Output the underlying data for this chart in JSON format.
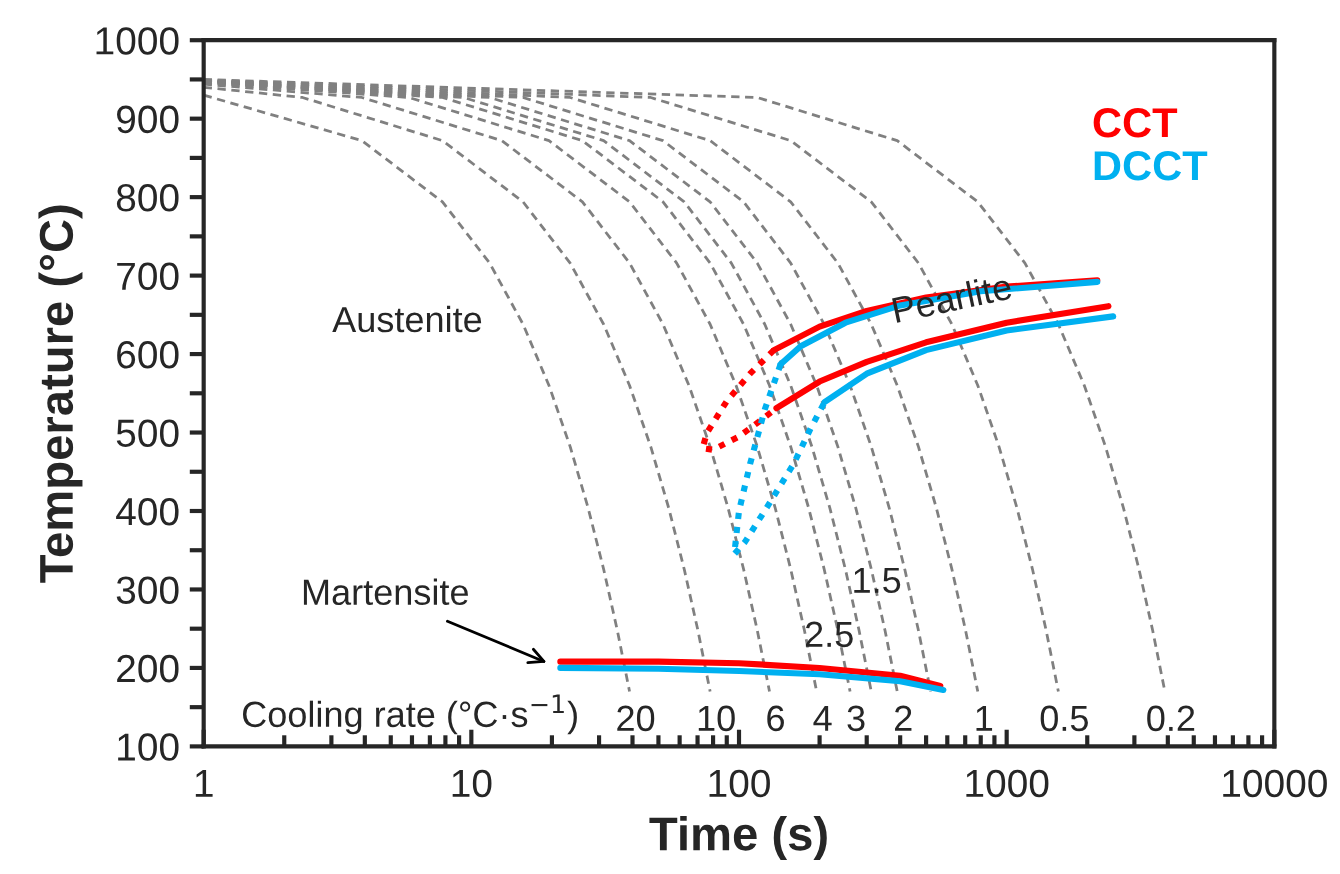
{
  "chart_data": {
    "type": "line",
    "xlabel": "Time (s)",
    "ylabel": "Temperature (°C)",
    "log": "x",
    "xlim": [
      1,
      10000
    ],
    "xticks": [
      1,
      10,
      100,
      1000,
      10000
    ],
    "ylim": [
      100,
      1000
    ],
    "yticks": [
      100,
      200,
      300,
      400,
      500,
      600,
      700,
      800,
      900,
      1000
    ],
    "grid": false,
    "legend": "top right",
    "marker": "none",
    "series": [
      {
        "color": "#808080",
        "line_style": "dashed",
        "x": [
          1,
          3.9,
          7.8,
          11.7,
          15.6,
          19.5,
          23.4,
          27.3,
          31.2,
          35.1,
          39
        ],
        "values": [
          930,
          872,
          794,
          716,
          638,
          560,
          482,
          404,
          326,
          248,
          170
        ]
      },
      {
        "color": "#808080",
        "line_style": "dashed",
        "x": [
          1,
          2.34,
          7.8,
          15.6,
          23.4,
          31.2,
          39,
          46.8,
          54.6,
          62.4,
          70.2,
          78
        ],
        "values": [
          940,
          927,
          872,
          794,
          716,
          638,
          560,
          482,
          404,
          326,
          248,
          170
        ]
      },
      {
        "color": "#808080",
        "line_style": "dashed",
        "x": [
          1,
          3.9,
          13,
          26,
          39,
          52,
          65,
          78,
          91,
          104,
          117,
          130
        ],
        "values": [
          944,
          927,
          872,
          794,
          716,
          638,
          560,
          482,
          404,
          326,
          248,
          170
        ]
      },
      {
        "color": "#808080",
        "line_style": "dashed",
        "x": [
          1,
          5.85,
          19.5,
          39,
          58.5,
          78,
          97.5,
          117,
          136.5,
          156,
          175.5,
          195
        ],
        "values": [
          946,
          927,
          872,
          794,
          716,
          638,
          560,
          482,
          404,
          326,
          248,
          170
        ]
      },
      {
        "color": "#808080",
        "line_style": "dashed",
        "x": [
          1,
          7.8,
          26,
          52,
          78,
          104,
          130,
          156,
          182,
          208,
          234,
          260
        ],
        "values": [
          947,
          927,
          872,
          794,
          716,
          638,
          560,
          482,
          404,
          326,
          248,
          170
        ]
      },
      {
        "color": "#808080",
        "line_style": "dashed",
        "x": [
          1,
          9.36,
          31.2,
          62.4,
          93.6,
          124.8,
          156,
          187.2,
          218.4,
          249.6,
          280.8,
          312
        ],
        "values": [
          947,
          927,
          872,
          794,
          716,
          638,
          560,
          482,
          404,
          326,
          248,
          170
        ]
      },
      {
        "color": "#808080",
        "line_style": "dashed",
        "x": [
          1,
          11.7,
          39,
          78,
          117,
          156,
          195,
          234,
          273,
          312,
          351,
          390
        ],
        "values": [
          948,
          927,
          872,
          794,
          716,
          638,
          560,
          482,
          404,
          326,
          248,
          170
        ]
      },
      {
        "color": "#808080",
        "line_style": "dashed",
        "x": [
          1,
          15.6,
          52,
          104,
          156,
          208,
          260,
          312,
          364,
          416,
          468,
          520
        ],
        "values": [
          948,
          927,
          872,
          794,
          716,
          638,
          560,
          482,
          404,
          326,
          248,
          170
        ]
      },
      {
        "color": "#808080",
        "line_style": "dashed",
        "x": [
          1,
          23.4,
          78,
          156,
          234,
          312,
          390,
          468,
          546,
          624,
          702,
          780
        ],
        "values": [
          949,
          927,
          872,
          794,
          716,
          638,
          560,
          482,
          404,
          326,
          248,
          170
        ]
      },
      {
        "color": "#808080",
        "line_style": "dashed",
        "x": [
          1,
          46.8,
          156,
          312,
          468,
          624,
          780,
          936,
          1092,
          1248,
          1404,
          1560
        ],
        "values": [
          949,
          927,
          872,
          794,
          716,
          638,
          560,
          482,
          404,
          326,
          248,
          170
        ]
      },
      {
        "color": "#808080",
        "line_style": "dashed",
        "x": [
          1,
          117,
          390,
          780,
          1170,
          1560,
          1950,
          2340,
          2730,
          3120,
          3510,
          3900
        ],
        "values": [
          950,
          927,
          872,
          794,
          716,
          638,
          560,
          482,
          404,
          326,
          248,
          170
        ]
      },
      {
        "name": "CCT",
        "color": "#ff0000",
        "line_style": "solid",
        "x": [
          135,
          200,
          300,
          500,
          1000,
          2180
        ],
        "values": [
          605,
          635,
          655,
          672,
          686,
          694
        ]
      },
      {
        "color": "#ff0000",
        "line_style": "solid",
        "x": [
          138,
          200,
          300,
          500,
          1000,
          2400
        ],
        "values": [
          531,
          565,
          590,
          615,
          640,
          661
        ]
      },
      {
        "color": "#ff0000",
        "line_style": "dotted",
        "x": [
          135,
          110,
          90,
          76,
          73,
          80,
          100,
          120,
          138
        ],
        "values": [
          605,
          575,
          540,
          500,
          480,
          478,
          495,
          515,
          531
        ]
      },
      {
        "color": "#ff0000",
        "line_style": "solid",
        "x": [
          21.5,
          50,
          100,
          200,
          400,
          565
        ],
        "values": [
          208,
          208,
          206,
          200,
          190,
          177
        ]
      },
      {
        "name": "DCCT",
        "color": "#00b0f0",
        "line_style": "solid",
        "x": [
          143,
          170,
          250,
          400,
          800,
          2180
        ],
        "values": [
          587,
          610,
          640,
          662,
          680,
          692
        ]
      },
      {
        "color": "#00b0f0",
        "line_style": "solid",
        "x": [
          209,
          300,
          500,
          1000,
          2500
        ],
        "values": [
          539,
          575,
          605,
          630,
          648
        ]
      },
      {
        "color": "#00b0f0",
        "line_style": "dotted",
        "x": [
          143,
          125,
          110,
          100,
          96,
          105,
          130,
          160,
          185,
          209
        ],
        "values": [
          587,
          530,
          460,
          400,
          345,
          360,
          410,
          460,
          505,
          539
        ]
      },
      {
        "color": "#00b0f0",
        "line_style": "solid",
        "x": [
          21.5,
          50,
          100,
          200,
          400,
          580
        ],
        "values": [
          200,
          199,
          196,
          192,
          183,
          172
        ]
      }
    ],
    "annotations": [
      "Austenite",
      "Pearlite",
      {
        "text": "Martensite",
        "x": 20,
        "y": 204
      },
      "Cooling rate (°C·s$^{−1}$)",
      "20",
      "10",
      "6",
      "4",
      "3",
      "2.5",
      "2",
      "1.5",
      "1",
      "0.5",
      "0.2"
    ]
  }
}
